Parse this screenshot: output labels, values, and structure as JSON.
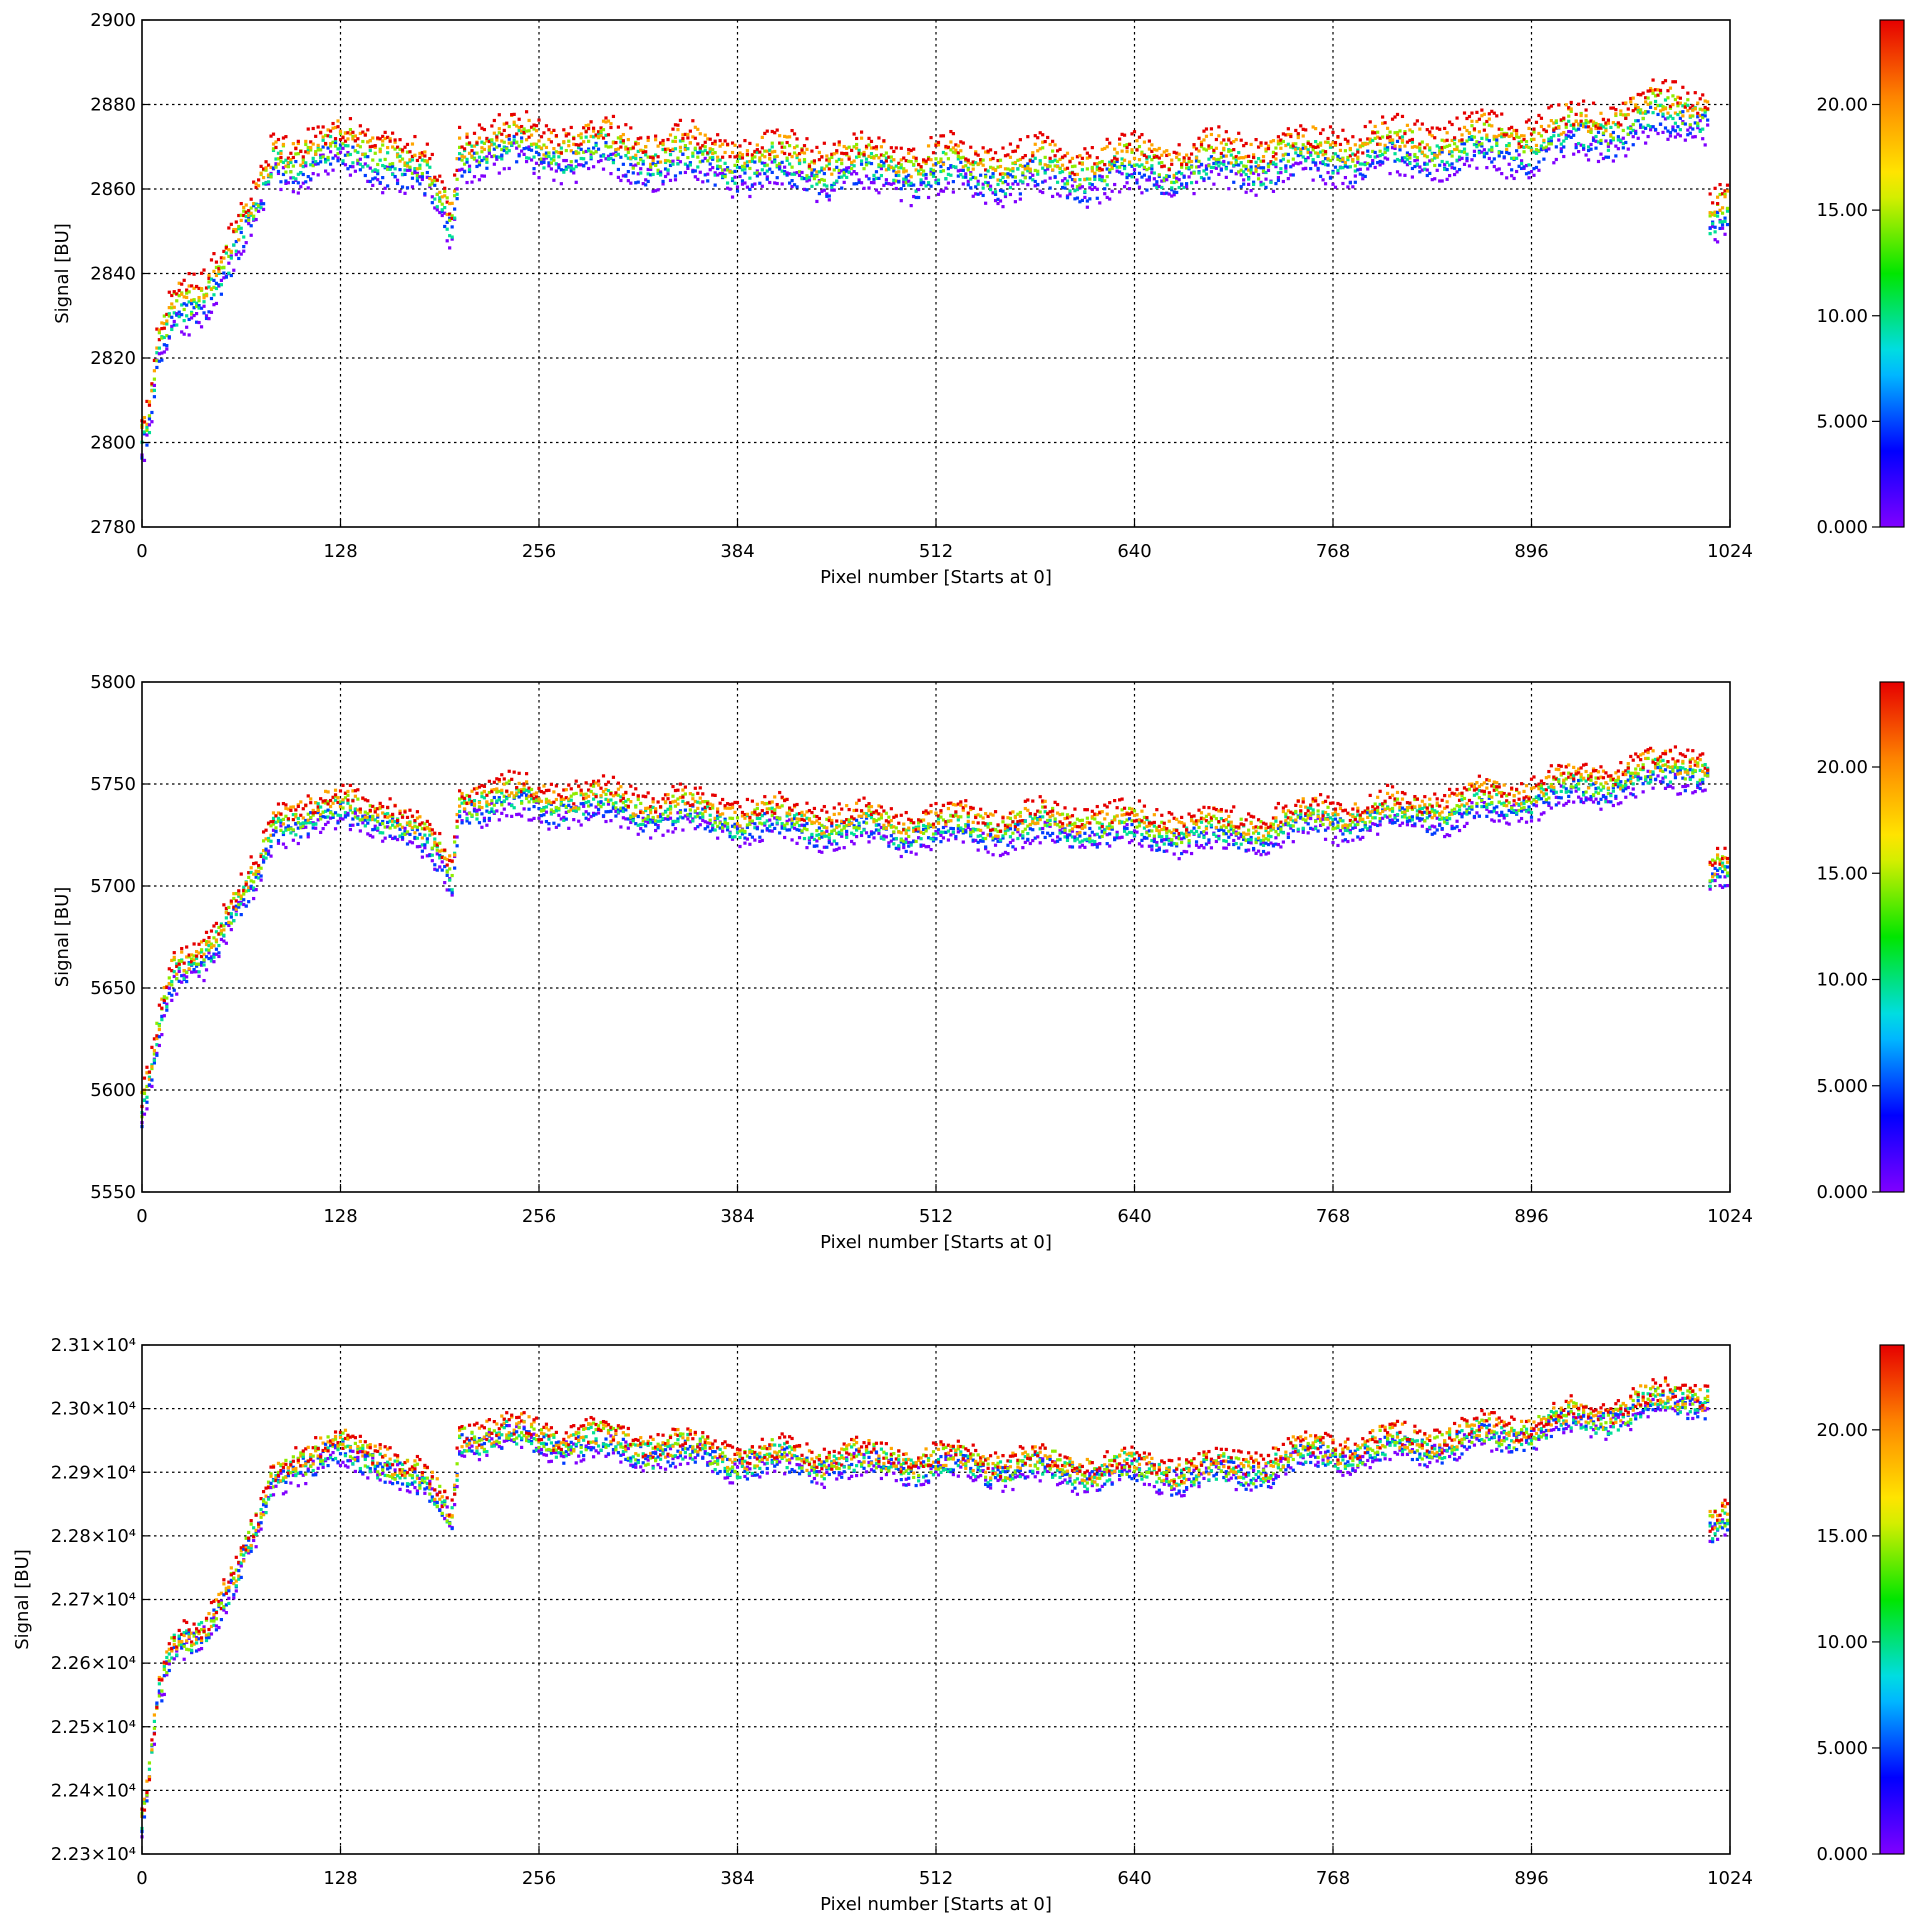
{
  "chart_data": [
    {
      "type": "scatter",
      "xlabel": "Pixel number [Starts at 0]",
      "ylabel": "Signal [BU]",
      "xlim": [
        0,
        1024
      ],
      "ylim": [
        2780,
        2900
      ],
      "xticks": [
        "0",
        "128",
        "256",
        "384",
        "512",
        "640",
        "768",
        "896",
        "1024"
      ],
      "yticks": [
        "2780",
        "2800",
        "2820",
        "2840",
        "2860",
        "2880",
        "2900"
      ],
      "ytick_values": [
        2780,
        2800,
        2820,
        2840,
        2860,
        2880,
        2900
      ],
      "grid": true,
      "colorbar": {
        "range": [
          0,
          24
        ],
        "ticks": [
          "0.000",
          "5.000",
          "10.00",
          "15.00",
          "20.00"
        ],
        "tick_values": [
          0,
          5,
          10,
          15,
          20
        ],
        "colormap": "rainbow"
      },
      "series_profile": {
        "x": [
          0,
          5,
          10,
          20,
          40,
          60,
          75,
          85,
          100,
          130,
          160,
          185,
          200,
          205,
          250,
          300,
          400,
          500,
          600,
          700,
          760,
          850,
          900,
          1000,
          1010,
          1011,
          1024
        ],
        "y": [
          2800,
          2805,
          2820,
          2830,
          2836,
          2846,
          2856,
          2867,
          2868,
          2869,
          2868,
          2862,
          2852,
          2870,
          2870,
          2869,
          2866,
          2865,
          2864,
          2866,
          2868,
          2870,
          2871,
          2879,
          2879,
          2854,
          2856
        ],
        "spread_by_time": 4,
        "noise": 3
      }
    },
    {
      "type": "scatter",
      "xlabel": "Pixel number [Starts at 0]",
      "ylabel": "Signal [BU]",
      "xlim": [
        0,
        1024
      ],
      "ylim": [
        5550,
        5800
      ],
      "xticks": [
        "0",
        "128",
        "256",
        "384",
        "512",
        "640",
        "768",
        "896",
        "1024"
      ],
      "yticks": [
        "5550",
        "5600",
        "5650",
        "5700",
        "5750",
        "5800"
      ],
      "ytick_values": [
        5550,
        5600,
        5650,
        5700,
        5750,
        5800
      ],
      "grid": true,
      "colorbar": {
        "range": [
          0,
          24
        ],
        "ticks": [
          "0.000",
          "5.000",
          "10.00",
          "15.00",
          "20.00"
        ],
        "tick_values": [
          0,
          5,
          10,
          15,
          20
        ],
        "colormap": "rainbow"
      },
      "series_profile": {
        "x": [
          0,
          5,
          10,
          20,
          40,
          60,
          75,
          85,
          100,
          130,
          160,
          185,
          200,
          205,
          250,
          300,
          400,
          500,
          600,
          700,
          760,
          850,
          900,
          1000,
          1010,
          1011,
          1024
        ],
        "y": [
          5590,
          5605,
          5625,
          5655,
          5668,
          5688,
          5705,
          5730,
          5735,
          5737,
          5735,
          5720,
          5705,
          5742,
          5742,
          5740,
          5732,
          5728,
          5730,
          5726,
          5733,
          5738,
          5745,
          5758,
          5758,
          5708,
          5708
        ],
        "spread_by_time": 6,
        "noise": 5
      }
    },
    {
      "type": "scatter",
      "xlabel": "Pixel number [Starts at 0]",
      "ylabel": "Signal [BU]",
      "xlim": [
        0,
        1024
      ],
      "ylim": [
        22300,
        23100
      ],
      "xticks": [
        "0",
        "128",
        "256",
        "384",
        "512",
        "640",
        "768",
        "896",
        "1024"
      ],
      "yticks": [
        "2.23×10⁴",
        "2.24×10⁴",
        "2.25×10⁴",
        "2.26×10⁴",
        "2.27×10⁴",
        "2.28×10⁴",
        "2.29×10⁴",
        "2.30×10⁴",
        "2.31×10⁴"
      ],
      "ytick_values": [
        22300,
        22400,
        22500,
        22600,
        22700,
        22800,
        22900,
        23000,
        23100
      ],
      "grid": true,
      "colorbar": {
        "range": [
          0,
          24
        ],
        "ticks": [
          "0.000",
          "5.000",
          "10.00",
          "15.00",
          "20.00"
        ],
        "tick_values": [
          0,
          5,
          10,
          15,
          20
        ],
        "colormap": "rainbow"
      },
      "series_profile": {
        "x": [
          0,
          5,
          10,
          20,
          40,
          60,
          75,
          85,
          100,
          130,
          160,
          185,
          200,
          205,
          250,
          300,
          400,
          500,
          600,
          700,
          760,
          850,
          900,
          1000,
          1010,
          1011,
          1024
        ],
        "y": [
          22350,
          22420,
          22530,
          22620,
          22660,
          22730,
          22810,
          22890,
          22920,
          22930,
          22920,
          22870,
          22830,
          22960,
          22955,
          22945,
          22920,
          22915,
          22905,
          22900,
          22930,
          22950,
          22970,
          23020,
          23020,
          22820,
          22830
        ],
        "spread_by_time": 12,
        "noise": 18
      }
    }
  ]
}
